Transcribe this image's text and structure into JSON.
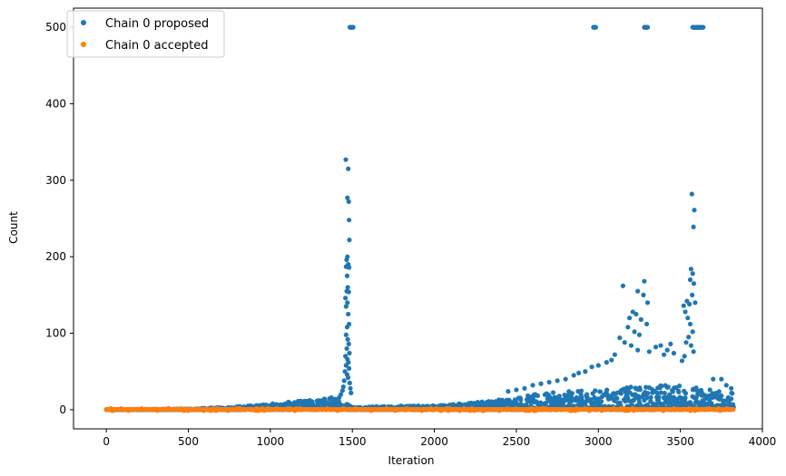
{
  "chart_data": {
    "type": "scatter",
    "title": "",
    "xlabel": "Iteration",
    "ylabel": "Count",
    "xlim": [
      -200,
      4000
    ],
    "ylim": [
      -25,
      525
    ],
    "xticks": [
      0,
      500,
      1000,
      1500,
      2000,
      2500,
      3000,
      3500,
      4000
    ],
    "yticks": [
      0,
      100,
      200,
      300,
      400,
      500
    ],
    "grid": false,
    "legend_position": "top-left",
    "n_iterations": 3825,
    "series": [
      {
        "name": "Chain 0 proposed",
        "color": "#1f77b4",
        "description": "proposed count per iteration",
        "points": [
          [
            1460,
            327
          ],
          [
            1475,
            315
          ],
          [
            1470,
            277
          ],
          [
            1478,
            272
          ],
          [
            1480,
            248
          ],
          [
            1482,
            222
          ],
          [
            1470,
            200
          ],
          [
            1465,
            196
          ],
          [
            1475,
            190
          ],
          [
            1462,
            187
          ],
          [
            1480,
            186
          ],
          [
            1468,
            175
          ],
          [
            1472,
            160
          ],
          [
            1466,
            155
          ],
          [
            1478,
            154
          ],
          [
            1458,
            146
          ],
          [
            1470,
            140
          ],
          [
            1462,
            135
          ],
          [
            1475,
            125
          ],
          [
            1480,
            112
          ],
          [
            1468,
            108
          ],
          [
            1462,
            98
          ],
          [
            1472,
            92
          ],
          [
            1478,
            86
          ],
          [
            1466,
            80
          ],
          [
            1482,
            74
          ],
          [
            1458,
            70
          ],
          [
            1470,
            66
          ],
          [
            1476,
            62
          ],
          [
            1462,
            58
          ],
          [
            1480,
            54
          ],
          [
            1455,
            50
          ],
          [
            1468,
            46
          ],
          [
            1474,
            42
          ],
          [
            1450,
            38
          ],
          [
            1484,
            35
          ],
          [
            1445,
            30
          ],
          [
            1488,
            28
          ],
          [
            1440,
            25
          ],
          [
            1492,
            22
          ],
          [
            1430,
            20
          ],
          [
            1420,
            16
          ],
          [
            1400,
            12
          ],
          [
            1380,
            10
          ],
          [
            3570,
            282
          ],
          [
            3585,
            261
          ],
          [
            3580,
            239
          ],
          [
            3565,
            184
          ],
          [
            3575,
            178
          ],
          [
            3560,
            170
          ],
          [
            3582,
            165
          ],
          [
            3572,
            150
          ],
          [
            3590,
            140
          ],
          [
            3555,
            138
          ],
          [
            3540,
            142
          ],
          [
            3520,
            136
          ],
          [
            3530,
            128
          ],
          [
            3545,
            120
          ],
          [
            3560,
            112
          ],
          [
            3575,
            102
          ],
          [
            3550,
            95
          ],
          [
            3535,
            88
          ],
          [
            3565,
            84
          ],
          [
            3580,
            76
          ],
          [
            3525,
            70
          ],
          [
            3510,
            64
          ],
          [
            3280,
            168
          ],
          [
            3150,
            162
          ],
          [
            3240,
            155
          ],
          [
            3275,
            150
          ],
          [
            3300,
            140
          ],
          [
            3210,
            128
          ],
          [
            3230,
            125
          ],
          [
            3190,
            120
          ],
          [
            3260,
            118
          ],
          [
            3295,
            112
          ],
          [
            3180,
            108
          ],
          [
            3220,
            102
          ],
          [
            3250,
            98
          ],
          [
            3130,
            94
          ],
          [
            3160,
            88
          ],
          [
            3200,
            84
          ],
          [
            3240,
            78
          ],
          [
            3310,
            76
          ],
          [
            3350,
            82
          ],
          [
            3380,
            84
          ],
          [
            3400,
            72
          ],
          [
            3420,
            78
          ],
          [
            3440,
            86
          ],
          [
            3460,
            74
          ],
          [
            3100,
            72
          ],
          [
            3080,
            65
          ],
          [
            3050,
            62
          ],
          [
            3000,
            58
          ],
          [
            2960,
            56
          ],
          [
            2920,
            50
          ],
          [
            2880,
            48
          ],
          [
            2850,
            45
          ],
          [
            2800,
            40
          ],
          [
            2750,
            38
          ],
          [
            2700,
            36
          ],
          [
            2650,
            34
          ],
          [
            2600,
            32
          ],
          [
            2550,
            28
          ],
          [
            2500,
            26
          ],
          [
            2450,
            24
          ],
          [
            3700,
            40
          ],
          [
            3750,
            40
          ],
          [
            3780,
            32
          ],
          [
            3810,
            28
          ],
          [
            3680,
            26
          ]
        ]
      },
      {
        "name": "Chain 0 accepted",
        "color": "#ff7f0e",
        "description": "accepted count per iteration, near zero throughout",
        "points": []
      }
    ],
    "saturated_value": 500,
    "saturated_x_ranges": [
      [
        1485,
        1505
      ],
      [
        2970,
        2985
      ],
      [
        3280,
        3300
      ],
      [
        3575,
        3640
      ]
    ],
    "baseline_max_by_x": [
      [
        0,
        0.5
      ],
      [
        500,
        1
      ],
      [
        700,
        3
      ],
      [
        900,
        6
      ],
      [
        1100,
        10
      ],
      [
        1300,
        14
      ],
      [
        1400,
        18
      ],
      [
        1500,
        4
      ],
      [
        1800,
        5
      ],
      [
        2000,
        6
      ],
      [
        2200,
        9
      ],
      [
        2400,
        14
      ],
      [
        2600,
        20
      ],
      [
        2800,
        24
      ],
      [
        3000,
        26
      ],
      [
        3200,
        30
      ],
      [
        3400,
        34
      ],
      [
        3600,
        30
      ],
      [
        3825,
        22
      ]
    ]
  },
  "legend": {
    "items": [
      {
        "label": "Chain 0 proposed",
        "color": "#1f77b4"
      },
      {
        "label": "Chain 0 accepted",
        "color": "#ff7f0e"
      }
    ]
  }
}
